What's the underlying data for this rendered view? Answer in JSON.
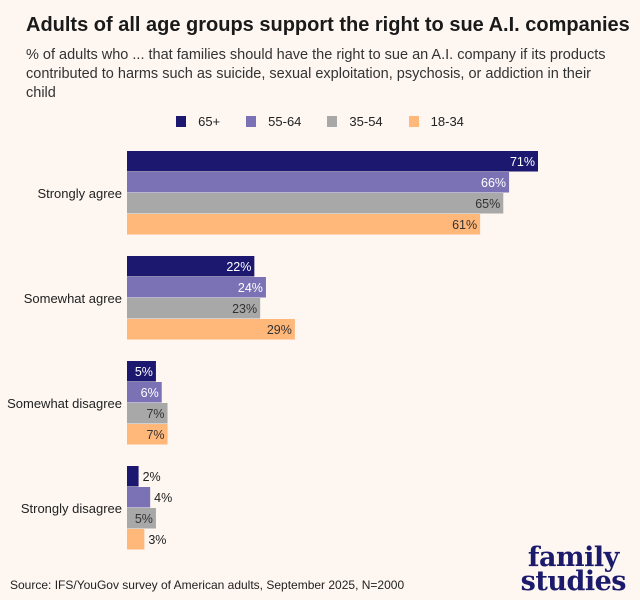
{
  "chart_data": {
    "type": "bar",
    "orientation": "horizontal",
    "title": "Adults of all age groups support the right to sue A.I. companies",
    "subtitle": "% of adults who ... that families should have the right to sue an A.I. company if its products contributed to harms such as suicide, sexual exploitation, psychosis, or addiction in their child",
    "categories": [
      "Strongly agree",
      "Somewhat agree",
      "Somewhat disagree",
      "Strongly disagree"
    ],
    "series": [
      {
        "name": "65+",
        "color": "#1c1870",
        "label_color": "#ffffff",
        "values": [
          71,
          22,
          5,
          2
        ]
      },
      {
        "name": "55-64",
        "color": "#7a72b4",
        "label_color": "#ffffff",
        "values": [
          66,
          24,
          6,
          4
        ]
      },
      {
        "name": "35-54",
        "color": "#a8a8a8",
        "label_color": "#333333",
        "values": [
          65,
          23,
          7,
          5
        ]
      },
      {
        "name": "18-34",
        "color": "#ffb77a",
        "label_color": "#333333",
        "values": [
          61,
          29,
          7,
          3
        ]
      }
    ],
    "value_suffix": "%",
    "legend_position": "top-center",
    "grid": false,
    "xlim": [
      0,
      71
    ]
  },
  "source": "Source: IFS/YouGov survey of American adults, September 2025, N=2000",
  "logo": {
    "line1": "family",
    "line2": "studies"
  }
}
